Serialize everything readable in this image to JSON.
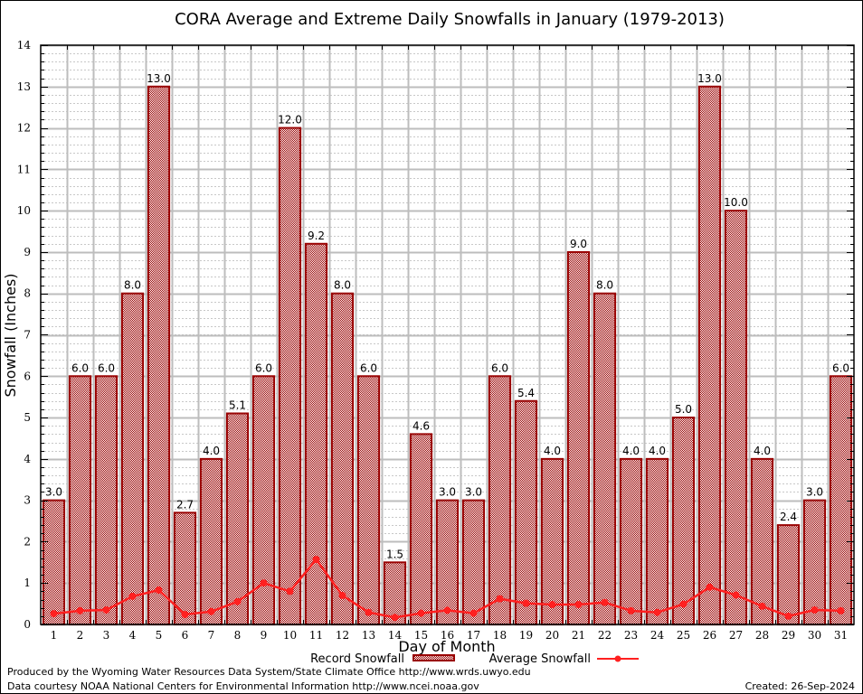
{
  "chart_data": {
    "type": "bar",
    "title": "CORA Average and Extreme Daily Snowfalls in January (1979-2013)",
    "xlabel": "Day of Month",
    "ylabel": "Snowfall (Inches)",
    "ylim": [
      0,
      14
    ],
    "yticks": [
      0,
      1,
      2,
      3,
      4,
      5,
      6,
      7,
      8,
      9,
      10,
      11,
      12,
      13,
      14
    ],
    "grid": true,
    "legend_position": "bottom-center",
    "categories": [
      "1",
      "2",
      "3",
      "4",
      "5",
      "6",
      "7",
      "8",
      "9",
      "10",
      "11",
      "12",
      "13",
      "14",
      "15",
      "16",
      "17",
      "18",
      "19",
      "20",
      "21",
      "22",
      "23",
      "24",
      "25",
      "26",
      "27",
      "28",
      "29",
      "30",
      "31"
    ],
    "series": [
      {
        "name": "Record Snowfall",
        "type": "bar",
        "color": "#990000",
        "values": [
          3.0,
          6.0,
          6.0,
          8.0,
          13.0,
          2.7,
          4.0,
          5.1,
          6.0,
          12.0,
          9.2,
          8.0,
          6.0,
          1.5,
          4.6,
          3.0,
          3.0,
          6.0,
          5.4,
          4.0,
          9.0,
          8.0,
          4.0,
          4.0,
          5.0,
          13.0,
          10.0,
          4.0,
          2.4,
          3.0,
          6.0
        ],
        "labels": [
          "3.0",
          "6.0",
          "6.0",
          "8.0",
          "13.0",
          "2.7",
          "4.0",
          "5.1",
          "6.0",
          "12.0",
          "9.2",
          "8.0",
          "6.0",
          "1.5",
          "4.6",
          "3.0",
          "3.0",
          "6.0",
          "5.4",
          "4.0",
          "9.0",
          "8.0",
          "4.0",
          "4.0",
          "5.0",
          "13.0",
          "10.0",
          "4.0",
          "2.4",
          "3.0",
          "6.0"
        ]
      },
      {
        "name": "Average Snowfall",
        "type": "line",
        "color": "#ff2020",
        "values": [
          0.26,
          0.33,
          0.35,
          0.68,
          0.83,
          0.24,
          0.31,
          0.55,
          1.0,
          0.8,
          1.57,
          0.7,
          0.29,
          0.17,
          0.27,
          0.34,
          0.27,
          0.62,
          0.51,
          0.48,
          0.48,
          0.53,
          0.33,
          0.29,
          0.49,
          0.9,
          0.71,
          0.44,
          0.2,
          0.35,
          0.33
        ]
      }
    ]
  },
  "footer": {
    "produced_by": "Produced by the Wyoming Water Resources Data System/State Climate Office http://www.wrds.uwyo.edu",
    "data_courtesy": "Data courtesy NOAA National Centers for Environmental Information http://www.ncei.noaa.gov",
    "created": "Created:  26-Sep-2024"
  }
}
